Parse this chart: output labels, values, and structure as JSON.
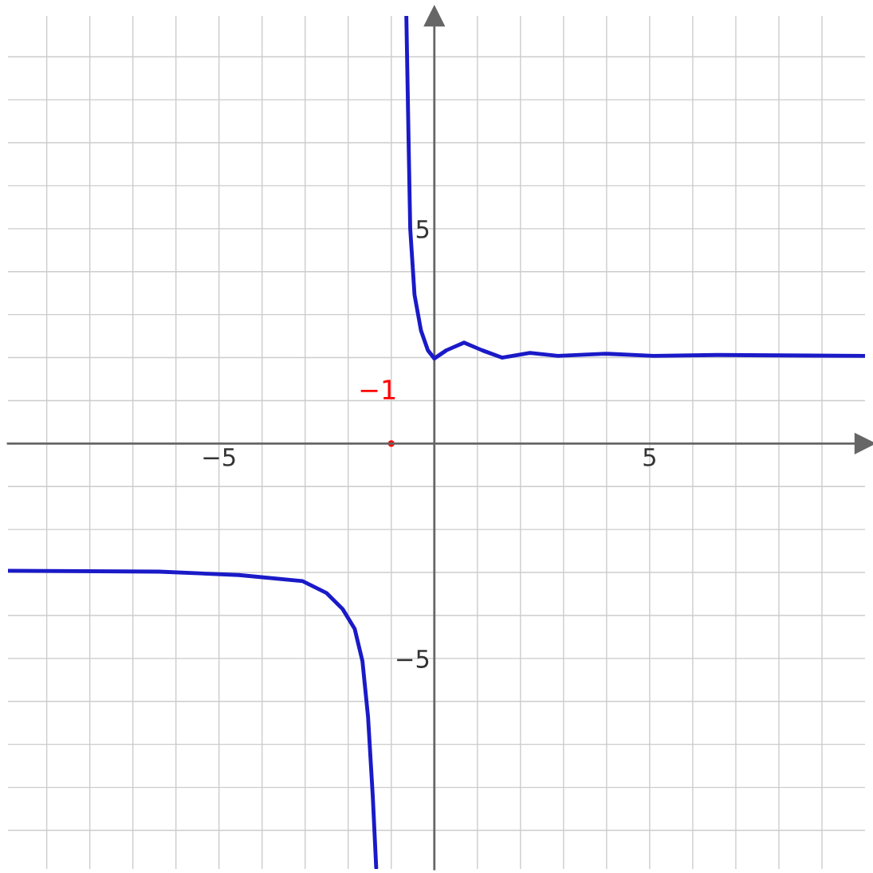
{
  "chart_data": {
    "type": "line",
    "xlim": [
      -9.9,
      10
    ],
    "ylim": [
      -9.9,
      9.95
    ],
    "xticks": [
      {
        "value": -9,
        "label": null
      },
      {
        "value": -8,
        "label": null
      },
      {
        "value": -7,
        "label": null
      },
      {
        "value": -6,
        "label": null
      },
      {
        "value": -5,
        "label": "−5"
      },
      {
        "value": -4,
        "label": null
      },
      {
        "value": -3,
        "label": null
      },
      {
        "value": -2,
        "label": null
      },
      {
        "value": -1,
        "label": null
      },
      {
        "value": 1,
        "label": null
      },
      {
        "value": 2,
        "label": null
      },
      {
        "value": 3,
        "label": null
      },
      {
        "value": 4,
        "label": null
      },
      {
        "value": 5,
        "label": "5"
      },
      {
        "value": 6,
        "label": null
      },
      {
        "value": 7,
        "label": null
      },
      {
        "value": 8,
        "label": null
      },
      {
        "value": 9,
        "label": null
      }
    ],
    "yticks": [
      {
        "value": -9,
        "label": null
      },
      {
        "value": -8,
        "label": null
      },
      {
        "value": -7,
        "label": null
      },
      {
        "value": -6,
        "label": null
      },
      {
        "value": -5,
        "label": "−5"
      },
      {
        "value": -4,
        "label": null
      },
      {
        "value": -3,
        "label": null
      },
      {
        "value": -2,
        "label": null
      },
      {
        "value": -1,
        "label": null
      },
      {
        "value": 1,
        "label": null
      },
      {
        "value": 2,
        "label": null
      },
      {
        "value": 3,
        "label": null
      },
      {
        "value": 4,
        "label": null
      },
      {
        "value": 5,
        "label": "5"
      },
      {
        "value": 6,
        "label": null
      },
      {
        "value": 7,
        "label": null
      },
      {
        "value": 8,
        "label": null
      },
      {
        "value": 9,
        "label": null
      }
    ],
    "grid": true,
    "marker": "none",
    "line_style": "solid",
    "series": [
      {
        "color": "#1a1ac8",
        "x": [
          -0.65,
          -0.59,
          -0.56,
          -0.46,
          -0.31,
          -0.15,
          0,
          0.28,
          0.69,
          1.11,
          1.57,
          2.22,
          2.87,
          3.98,
          5.09,
          6.57,
          10
        ],
        "values": [
          9.94,
          6.6,
          5.0,
          3.46,
          2.63,
          2.17,
          1.98,
          2.17,
          2.35,
          2.17,
          2.0,
          2.11,
          2.04,
          2.09,
          2.04,
          2.06,
          2.04
        ]
      },
      {
        "color": "#1a1ac8",
        "x": [
          -9.9,
          -6.39,
          -4.54,
          -3.06,
          -2.5,
          -2.13,
          -1.85,
          -1.67,
          -1.54,
          -1.43,
          -1.35
        ],
        "values": [
          -2.96,
          -2.98,
          -3.06,
          -3.2,
          -3.48,
          -3.85,
          -4.31,
          -5.06,
          -6.35,
          -8.2,
          -9.87
        ]
      }
    ],
    "annotations": [
      {
        "text": "−1",
        "x": -1,
        "y": 0
      }
    ]
  }
}
